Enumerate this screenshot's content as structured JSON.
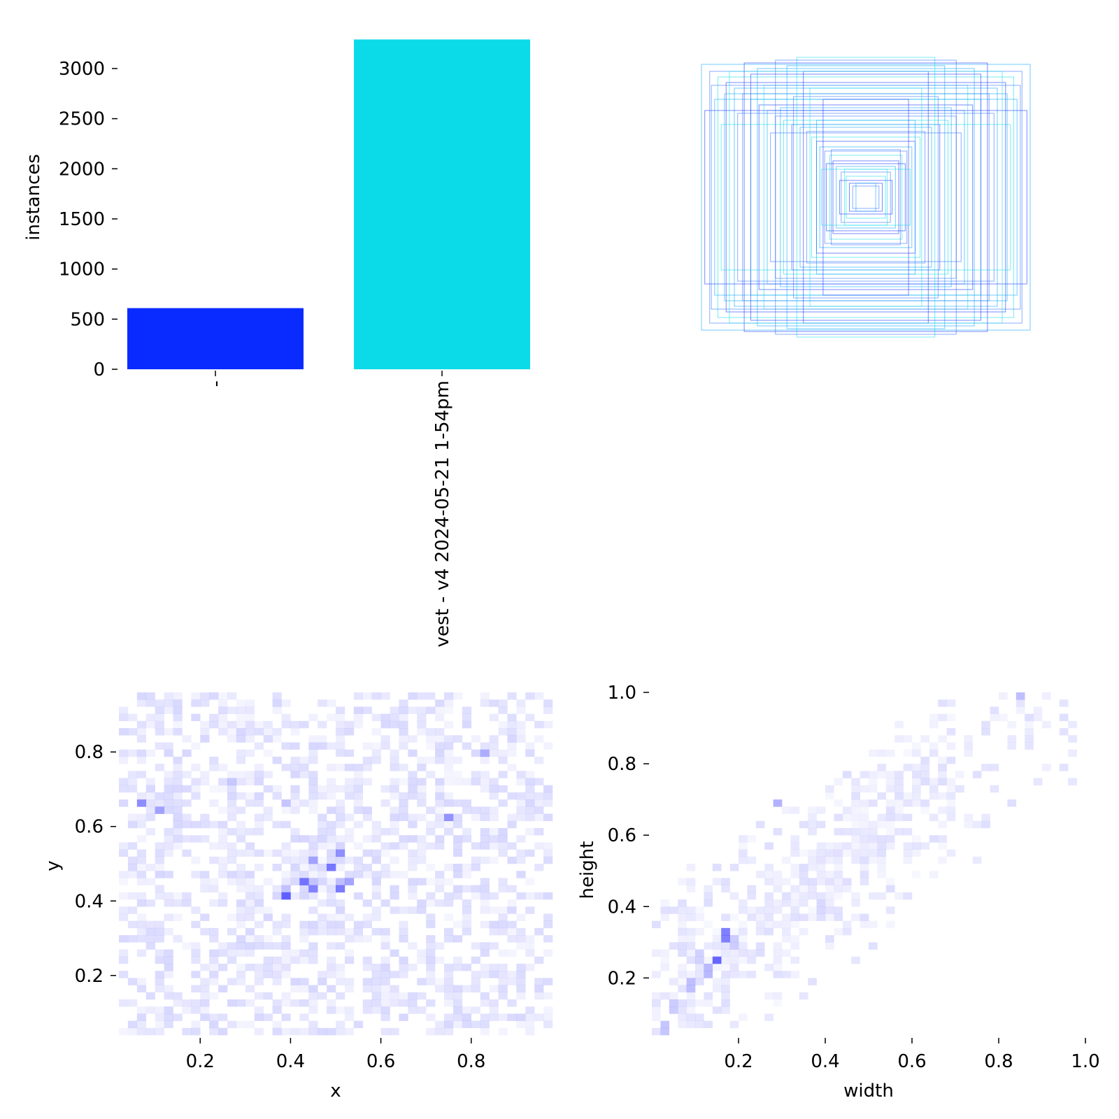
{
  "colors": {
    "bar_series": [
      "#0a2bff",
      "#0bdbe9"
    ],
    "heat_base": "#0000ff",
    "box_colors": [
      "#0a2bff",
      "#0bdbe9",
      "#2a6bff",
      "#00a0ff"
    ]
  },
  "chart_data": [
    {
      "id": "instances-bar",
      "type": "bar",
      "title": "",
      "xlabel": "",
      "ylabel": "instances",
      "ylim": [
        0,
        3300
      ],
      "yticks": [
        0,
        500,
        1000,
        1500,
        2000,
        2500,
        3000
      ],
      "categories": [
        "-",
        "vest - v4 2024-05-21 1-54pm"
      ],
      "values": [
        610,
        3290
      ]
    },
    {
      "id": "label-boxes",
      "type": "boxes",
      "title": "",
      "description_free": true,
      "boxes": [
        {
          "w": 0.1,
          "h": 0.1
        },
        {
          "w": 0.12,
          "h": 0.15
        },
        {
          "w": 0.15,
          "h": 0.18
        },
        {
          "w": 0.18,
          "h": 0.22
        },
        {
          "w": 0.2,
          "h": 0.26
        },
        {
          "w": 0.22,
          "h": 0.3
        },
        {
          "w": 0.25,
          "h": 0.33
        },
        {
          "w": 0.28,
          "h": 0.36
        },
        {
          "w": 0.3,
          "h": 0.4
        },
        {
          "w": 0.33,
          "h": 0.43
        },
        {
          "w": 0.36,
          "h": 0.47
        },
        {
          "w": 0.4,
          "h": 0.5
        },
        {
          "w": 0.45,
          "h": 0.52
        },
        {
          "w": 0.5,
          "h": 0.55
        },
        {
          "w": 0.55,
          "h": 0.58
        },
        {
          "w": 0.6,
          "h": 0.62
        },
        {
          "w": 0.65,
          "h": 0.66
        },
        {
          "w": 0.7,
          "h": 0.7
        },
        {
          "w": 0.75,
          "h": 0.74
        },
        {
          "w": 0.8,
          "h": 0.78
        },
        {
          "w": 0.85,
          "h": 0.82
        },
        {
          "w": 0.9,
          "h": 0.86
        },
        {
          "w": 0.95,
          "h": 0.9
        },
        {
          "w": 1.0,
          "h": 0.95
        },
        {
          "w": 0.38,
          "h": 0.9
        },
        {
          "w": 0.42,
          "h": 1.0
        },
        {
          "w": 0.55,
          "h": 0.98
        },
        {
          "w": 0.48,
          "h": 0.94
        },
        {
          "w": 0.7,
          "h": 0.88
        },
        {
          "w": 0.62,
          "h": 0.8
        },
        {
          "w": 0.78,
          "h": 0.6
        },
        {
          "w": 0.92,
          "h": 0.7
        },
        {
          "w": 0.98,
          "h": 0.62
        },
        {
          "w": 0.88,
          "h": 0.52
        },
        {
          "w": 0.58,
          "h": 0.46
        },
        {
          "w": 0.3,
          "h": 0.55
        },
        {
          "w": 0.26,
          "h": 0.7
        },
        {
          "w": 0.34,
          "h": 0.78
        },
        {
          "w": 0.44,
          "h": 0.72
        },
        {
          "w": 0.52,
          "h": 0.64
        },
        {
          "w": 0.16,
          "h": 0.12
        },
        {
          "w": 0.13,
          "h": 0.2
        },
        {
          "w": 0.08,
          "h": 0.08
        },
        {
          "w": 0.06,
          "h": 0.1
        },
        {
          "w": 0.24,
          "h": 0.24
        },
        {
          "w": 0.27,
          "h": 0.2
        },
        {
          "w": 0.21,
          "h": 0.34
        },
        {
          "w": 0.66,
          "h": 0.92
        },
        {
          "w": 0.74,
          "h": 0.96
        },
        {
          "w": 0.83,
          "h": 0.9
        },
        {
          "w": 0.94,
          "h": 0.8
        },
        {
          "w": 0.86,
          "h": 0.74
        }
      ]
    },
    {
      "id": "xy-heatmap",
      "type": "heatmap",
      "xlabel": "x",
      "ylabel": "y",
      "xlim": [
        0.02,
        0.98
      ],
      "ylim": [
        0.04,
        0.96
      ],
      "xticks": [
        0.2,
        0.4,
        0.6,
        0.8
      ],
      "yticks": [
        0.2,
        0.4,
        0.6,
        0.8
      ],
      "bins": [
        48,
        48
      ],
      "hotspots": [
        {
          "x": 0.385,
          "y": 0.42,
          "v": 1.0
        },
        {
          "x": 0.445,
          "y": 0.44,
          "v": 0.85
        },
        {
          "x": 0.505,
          "y": 0.44,
          "v": 0.9
        },
        {
          "x": 0.425,
          "y": 0.455,
          "v": 0.7
        },
        {
          "x": 0.485,
          "y": 0.495,
          "v": 0.75
        },
        {
          "x": 0.505,
          "y": 0.535,
          "v": 0.7
        },
        {
          "x": 0.445,
          "y": 0.515,
          "v": 0.55
        },
        {
          "x": 0.075,
          "y": 0.665,
          "v": 0.55
        },
        {
          "x": 0.105,
          "y": 0.645,
          "v": 0.45
        },
        {
          "x": 0.745,
          "y": 0.625,
          "v": 0.5
        },
        {
          "x": 0.825,
          "y": 0.795,
          "v": 0.4
        },
        {
          "x": 0.525,
          "y": 0.455,
          "v": 0.45
        },
        {
          "x": 0.465,
          "y": 0.575,
          "v": 0.3
        },
        {
          "x": 0.265,
          "y": 0.725,
          "v": 0.3
        },
        {
          "x": 0.395,
          "y": 0.665,
          "v": 0.28
        }
      ],
      "noise_level": 0.12
    },
    {
      "id": "wh-heatmap",
      "type": "heatmap",
      "xlabel": "width",
      "ylabel": "height",
      "xlim": [
        0.0,
        1.0
      ],
      "ylim": [
        0.04,
        1.0
      ],
      "xticks": [
        0.2,
        0.4,
        0.6,
        0.8,
        1.0
      ],
      "yticks": [
        0.2,
        0.4,
        0.6,
        0.8,
        1.0
      ],
      "bins": [
        50,
        48
      ],
      "hotspots": [
        {
          "x": 0.17,
          "y": 0.32,
          "v": 1.0
        },
        {
          "x": 0.15,
          "y": 0.25,
          "v": 0.6
        },
        {
          "x": 0.13,
          "y": 0.22,
          "v": 0.55
        },
        {
          "x": 0.09,
          "y": 0.18,
          "v": 0.5
        },
        {
          "x": 0.03,
          "y": 0.06,
          "v": 0.45
        },
        {
          "x": 0.05,
          "y": 0.12,
          "v": 0.4
        },
        {
          "x": 0.11,
          "y": 0.26,
          "v": 0.35
        },
        {
          "x": 0.19,
          "y": 0.3,
          "v": 0.4
        },
        {
          "x": 0.85,
          "y": 0.99,
          "v": 0.25
        },
        {
          "x": 0.29,
          "y": 0.69,
          "v": 0.3
        },
        {
          "x": 0.39,
          "y": 0.4,
          "v": 0.3
        }
      ],
      "noise_level": 0.1
    }
  ]
}
